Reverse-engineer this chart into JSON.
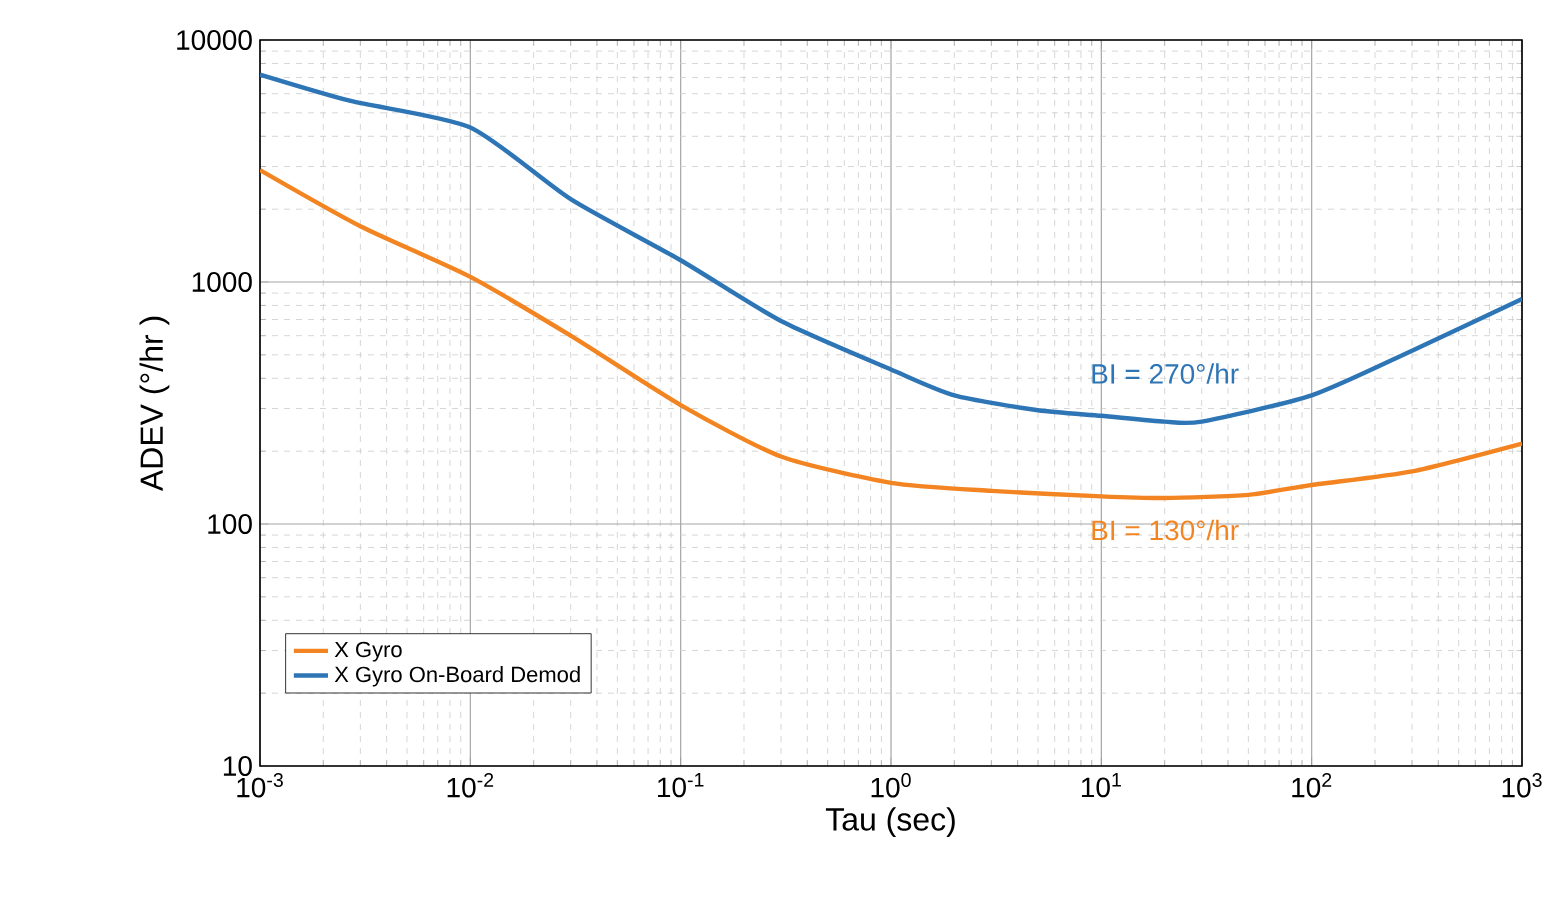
{
  "chart_data": {
    "type": "line",
    "xlabel": "Tau (sec)",
    "ylabel": "ADEV (°/hr )",
    "log": "xy",
    "grid": true,
    "legend": "bottom left",
    "xlim": [
      0.001,
      1000
    ],
    "ylim": [
      10,
      10000
    ],
    "xticks": [
      {
        "value": 0.001,
        "label": "10$^{-3}$"
      },
      {
        "value": 0.01,
        "label": "10$^{-2}$"
      },
      {
        "value": 0.1,
        "label": "10$^{-1}$"
      },
      {
        "value": 1,
        "label": "10$^{0}$"
      },
      {
        "value": 10,
        "label": "10$^{1}$"
      },
      {
        "value": 100,
        "label": "10$^{2}$"
      },
      {
        "value": 1000,
        "label": "10$^{3}$"
      }
    ],
    "yticks": [
      10,
      100,
      1000,
      10000
    ],
    "series": [
      {
        "name": "X Gyro",
        "color": "#f28522",
        "x": [
          0.001,
          0.003,
          0.01,
          0.03,
          0.1,
          0.3,
          1,
          3,
          10,
          20,
          50,
          100,
          300,
          1000
        ],
        "values": [
          2900,
          1700,
          1050,
          600,
          310,
          190,
          148,
          137,
          130,
          128,
          132,
          145,
          165,
          215
        ]
      },
      {
        "name": "X Gyro On-Board Demod",
        "color": "#2e75b6",
        "x": [
          0.001,
          0.0027,
          0.01,
          0.03,
          0.1,
          0.3,
          1,
          2,
          5,
          10,
          20,
          30,
          100,
          300,
          1000
        ],
        "values": [
          7200,
          5600,
          4350,
          2200,
          1230,
          690,
          435,
          340,
          295,
          280,
          265,
          265,
          340,
          520,
          850
        ]
      }
    ],
    "annotations": [
      "BI = 130°/hr",
      "BI = 270°/hr"
    ]
  }
}
